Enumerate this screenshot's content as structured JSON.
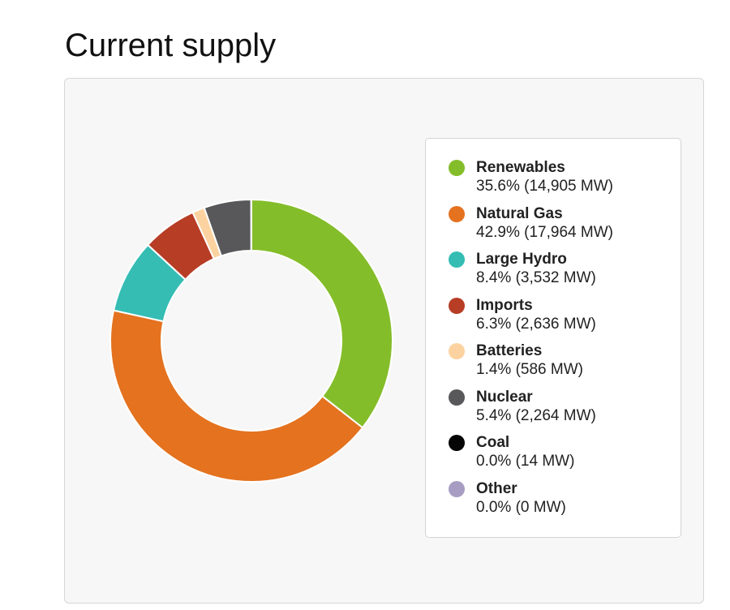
{
  "page": {
    "title": "Current supply"
  },
  "chart_data": {
    "type": "pie",
    "style": "donut",
    "legend_position": "right",
    "slices": [
      {
        "name": "Renewables",
        "percent": 35.6,
        "mw": 14905,
        "label": "35.6% (14,905 MW)",
        "color": "#84bd2a"
      },
      {
        "name": "Natural Gas",
        "percent": 42.9,
        "mw": 17964,
        "label": "42.9% (17,964 MW)",
        "color": "#e4721f"
      },
      {
        "name": "Large Hydro",
        "percent": 8.4,
        "mw": 3532,
        "label": "8.4% (3,532 MW)",
        "color": "#35bdb4"
      },
      {
        "name": "Imports",
        "percent": 6.3,
        "mw": 2636,
        "label": "6.3% (2,636 MW)",
        "color": "#b73d25"
      },
      {
        "name": "Batteries",
        "percent": 1.4,
        "mw": 586,
        "label": "1.4% (586 MW)",
        "color": "#fcd3a0"
      },
      {
        "name": "Nuclear",
        "percent": 5.4,
        "mw": 2264,
        "label": "5.4% (2,264 MW)",
        "color": "#58585a"
      },
      {
        "name": "Coal",
        "percent": 0.0,
        "mw": 14,
        "label": "0.0% (14 MW)",
        "color": "#050505"
      },
      {
        "name": "Other",
        "percent": 0.0,
        "mw": 0,
        "label": "0.0% (0 MW)",
        "color": "#a79dc3"
      }
    ]
  }
}
